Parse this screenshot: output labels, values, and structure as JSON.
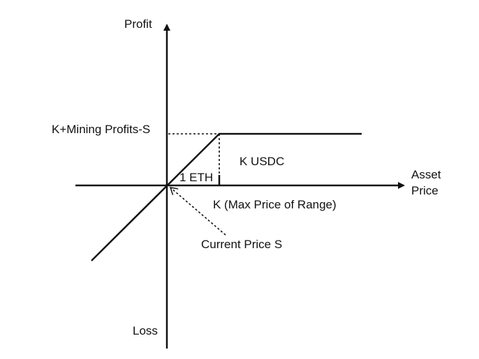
{
  "diagram": {
    "axis_labels": {
      "y_top": "Profit",
      "y_bottom": "Loss",
      "x_line1": "Asset",
      "x_line2": "Price"
    },
    "annotations": {
      "cap_level": "K+Mining Profits-S",
      "k_usdc": "K USDC",
      "one_eth": "1 ETH",
      "k_max_price": "K (Max Price of Range)",
      "current_price": "Current Price S"
    },
    "colors": {
      "ink": "#111111",
      "background": "#ffffff"
    }
  }
}
